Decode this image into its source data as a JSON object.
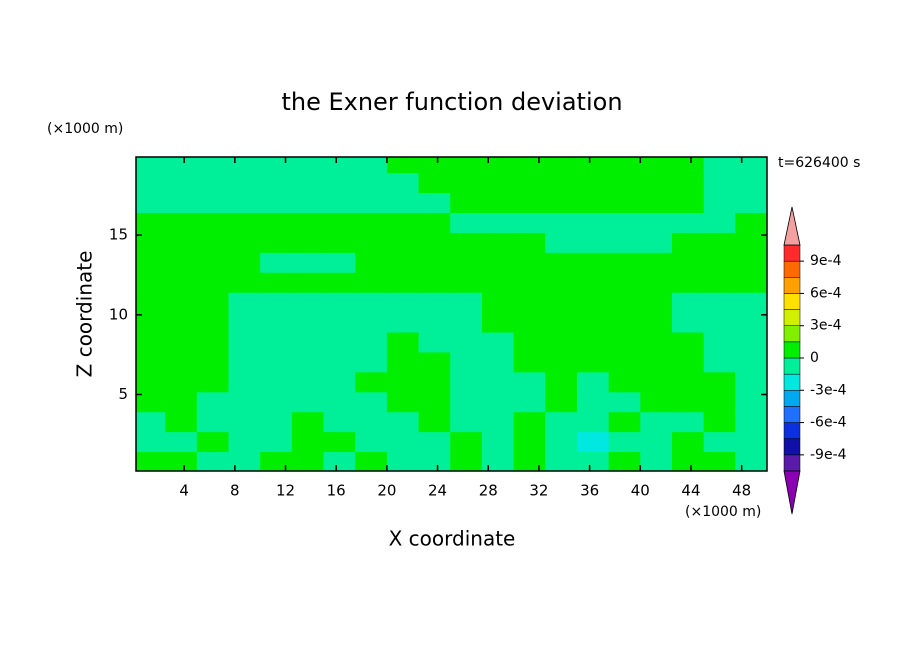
{
  "chart_data": {
    "type": "contour",
    "title": "the Exner function deviation",
    "x_label": "X coordinate",
    "y_label": "Z coordinate",
    "x_unit": "(×1000 m)",
    "y_unit": "(×1000 m)",
    "time_label": "t=626400 s",
    "xlim": [
      0.2,
      50
    ],
    "ylim": [
      0.2,
      19.9
    ],
    "xticks": [
      4,
      8,
      12,
      16,
      20,
      24,
      28,
      32,
      36,
      40,
      44,
      48
    ],
    "yticks": [
      5,
      10,
      15
    ],
    "x": [
      1.25,
      3.75,
      6.25,
      8.75,
      11.25,
      13.75,
      16.25,
      18.75,
      21.25,
      23.75,
      26.25,
      28.75,
      31.25,
      33.75,
      36.25,
      38.75,
      41.25,
      43.75,
      46.25,
      48.75
    ],
    "z": [
      0.8,
      2.05,
      3.3,
      4.55,
      5.8,
      7.05,
      8.3,
      9.55,
      10.8,
      12.05,
      13.3,
      14.55,
      15.8,
      17.05,
      18.3,
      19.55
    ],
    "values": [
      [
        5e-05,
        5e-05,
        -5e-05,
        -5e-05,
        5e-05,
        5e-05,
        -5e-05,
        5e-05,
        -5e-05,
        -5e-05,
        5e-05,
        -5e-05,
        5e-05,
        -5e-05,
        -5e-05,
        5e-05,
        -5e-05,
        5e-05,
        5e-05,
        -5e-05
      ],
      [
        -5e-05,
        -5e-05,
        5e-05,
        -5e-05,
        -5e-05,
        5e-05,
        5e-05,
        -5e-05,
        -5e-05,
        -5e-05,
        5e-05,
        -5e-05,
        5e-05,
        -5e-05,
        -0.0002,
        -5e-05,
        -5e-05,
        5e-05,
        -5e-05,
        -5e-05
      ],
      [
        -5e-05,
        5e-05,
        -5e-05,
        -5e-05,
        -5e-05,
        5e-05,
        -5e-05,
        -5e-05,
        -5e-05,
        5e-05,
        -5e-05,
        -5e-05,
        5e-05,
        -5e-05,
        -5e-05,
        5e-05,
        -5e-05,
        -5e-05,
        5e-05,
        -5e-05
      ],
      [
        5e-05,
        5e-05,
        -5e-05,
        -5e-05,
        -5e-05,
        -5e-05,
        -5e-05,
        -5e-05,
        5e-05,
        5e-05,
        -5e-05,
        -5e-05,
        -5e-05,
        5e-05,
        -5e-05,
        -5e-05,
        5e-05,
        5e-05,
        5e-05,
        -5e-05
      ],
      [
        5e-05,
        5e-05,
        5e-05,
        -5e-05,
        -5e-05,
        -5e-05,
        -5e-05,
        5e-05,
        5e-05,
        5e-05,
        -5e-05,
        -5e-05,
        -5e-05,
        5e-05,
        -5e-05,
        5e-05,
        5e-05,
        5e-05,
        5e-05,
        -5e-05
      ],
      [
        5e-05,
        5e-05,
        5e-05,
        -5e-05,
        -5e-05,
        -5e-05,
        -5e-05,
        -5e-05,
        5e-05,
        5e-05,
        -5e-05,
        -5e-05,
        5e-05,
        5e-05,
        5e-05,
        5e-05,
        5e-05,
        5e-05,
        -5e-05,
        -5e-05
      ],
      [
        5e-05,
        5e-05,
        5e-05,
        -5e-05,
        -5e-05,
        -5e-05,
        -5e-05,
        -5e-05,
        5e-05,
        -5e-05,
        -5e-05,
        -5e-05,
        5e-05,
        5e-05,
        5e-05,
        5e-05,
        5e-05,
        5e-05,
        -5e-05,
        -5e-05
      ],
      [
        5e-05,
        5e-05,
        5e-05,
        -5e-05,
        -5e-05,
        -5e-05,
        -5e-05,
        -5e-05,
        -5e-05,
        -5e-05,
        -5e-05,
        5e-05,
        5e-05,
        5e-05,
        5e-05,
        5e-05,
        5e-05,
        -5e-05,
        -5e-05,
        -5e-05
      ],
      [
        5e-05,
        5e-05,
        5e-05,
        -5e-05,
        -5e-05,
        -5e-05,
        -5e-05,
        -5e-05,
        -5e-05,
        -5e-05,
        -5e-05,
        5e-05,
        5e-05,
        5e-05,
        5e-05,
        5e-05,
        5e-05,
        -5e-05,
        -5e-05,
        -5e-05
      ],
      [
        5e-05,
        5e-05,
        5e-05,
        5e-05,
        5e-05,
        5e-05,
        5e-05,
        5e-05,
        5e-05,
        5e-05,
        5e-05,
        5e-05,
        5e-05,
        5e-05,
        5e-05,
        5e-05,
        5e-05,
        5e-05,
        5e-05,
        5e-05
      ],
      [
        5e-05,
        5e-05,
        5e-05,
        5e-05,
        -5e-05,
        -5e-05,
        -5e-05,
        5e-05,
        5e-05,
        5e-05,
        5e-05,
        5e-05,
        5e-05,
        5e-05,
        5e-05,
        5e-05,
        5e-05,
        5e-05,
        5e-05,
        5e-05
      ],
      [
        5e-05,
        5e-05,
        5e-05,
        5e-05,
        5e-05,
        5e-05,
        5e-05,
        5e-05,
        5e-05,
        5e-05,
        5e-05,
        5e-05,
        5e-05,
        -5e-05,
        -5e-05,
        -5e-05,
        -5e-05,
        5e-05,
        5e-05,
        5e-05
      ],
      [
        5e-05,
        5e-05,
        5e-05,
        5e-05,
        5e-05,
        5e-05,
        5e-05,
        5e-05,
        5e-05,
        5e-05,
        -5e-05,
        -5e-05,
        -5e-05,
        -5e-05,
        -5e-05,
        -5e-05,
        -5e-05,
        -5e-05,
        -5e-05,
        5e-05
      ],
      [
        -5e-05,
        -5e-05,
        -5e-05,
        -5e-05,
        -5e-05,
        -5e-05,
        -5e-05,
        -5e-05,
        -5e-05,
        -5e-05,
        5e-05,
        5e-05,
        5e-05,
        5e-05,
        5e-05,
        5e-05,
        5e-05,
        5e-05,
        -5e-05,
        -5e-05
      ],
      [
        -5e-05,
        -5e-05,
        -5e-05,
        -5e-05,
        -5e-05,
        -5e-05,
        -5e-05,
        -5e-05,
        -5e-05,
        5e-05,
        5e-05,
        5e-05,
        5e-05,
        5e-05,
        5e-05,
        5e-05,
        5e-05,
        5e-05,
        -5e-05,
        -5e-05
      ],
      [
        -5e-05,
        -5e-05,
        -5e-05,
        -5e-05,
        -5e-05,
        -5e-05,
        -5e-05,
        -5e-05,
        5e-05,
        5e-05,
        5e-05,
        5e-05,
        5e-05,
        5e-05,
        5e-05,
        5e-05,
        5e-05,
        5e-05,
        -5e-05,
        -5e-05
      ]
    ],
    "levels": [
      -0.00105,
      -0.0009,
      -0.00075,
      -0.0006,
      -0.00045,
      -0.0003,
      -0.00015,
      0,
      0.00015,
      0.0003,
      0.00045,
      0.0006,
      0.00075,
      0.0009,
      0.00105
    ],
    "colors": [
      "#5a1ca8",
      "#1010a8",
      "#0a30e0",
      "#2070ff",
      "#00a8f0",
      "#00e8e0",
      "#00f09a",
      "#00ee00",
      "#80f000",
      "#d0f000",
      "#ffe000",
      "#ffa000",
      "#ff6a00",
      "#ff2a2a"
    ],
    "extend_low_color": "#8c00b4",
    "extend_high_color": "#f4a0a0",
    "cbar_ticks": [
      {
        "value": 0.0009,
        "label": "9e-4"
      },
      {
        "value": 0.0006,
        "label": "6e-4"
      },
      {
        "value": 0.0003,
        "label": "3e-4"
      },
      0,
      {
        "value": -0.0003,
        "label": "-3e-4"
      },
      {
        "value": -0.0006,
        "label": "-6e-4"
      },
      {
        "value": -0.0009,
        "label": "-9e-4"
      }
    ]
  }
}
